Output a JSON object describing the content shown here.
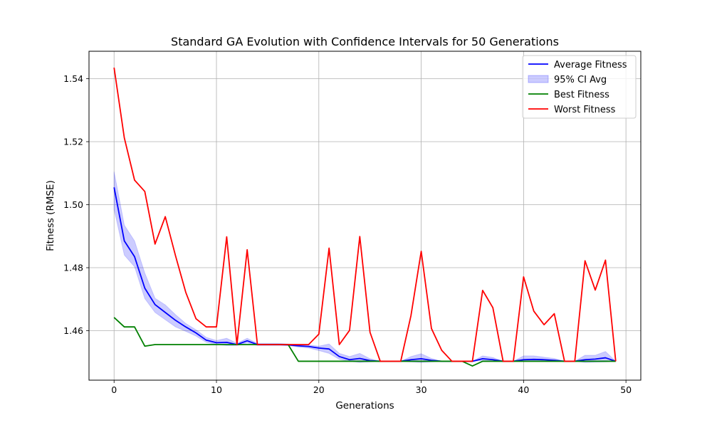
{
  "chart_data": {
    "type": "line",
    "title": "Standard GA Evolution with Confidence Intervals for 50 Generations",
    "xlabel": "Generations",
    "ylabel": "Fitness (RMSE)",
    "xlim": [
      -2.45,
      51.45
    ],
    "ylim": [
      1.4443,
      1.5487
    ],
    "xticks": [
      0,
      10,
      20,
      30,
      40,
      50
    ],
    "yticks": [
      1.46,
      1.48,
      1.5,
      1.52,
      1.54
    ],
    "ytick_labels": [
      "1.46",
      "1.48",
      "1.50",
      "1.52",
      "1.54"
    ],
    "grid": true,
    "legend_position": "top-right",
    "x": [
      0,
      1,
      2,
      3,
      4,
      5,
      6,
      7,
      8,
      9,
      10,
      11,
      12,
      13,
      14,
      15,
      16,
      17,
      18,
      19,
      20,
      21,
      22,
      23,
      24,
      25,
      26,
      27,
      28,
      29,
      30,
      31,
      32,
      33,
      34,
      35,
      36,
      37,
      38,
      39,
      40,
      41,
      42,
      43,
      44,
      45,
      46,
      47,
      48,
      49
    ],
    "series": [
      {
        "name": "Average Fitness",
        "color": "#0000ff",
        "values": [
          1.5055,
          1.4885,
          1.4835,
          1.4735,
          1.4683,
          1.4658,
          1.4633,
          1.4612,
          1.4593,
          1.457,
          1.4562,
          1.4563,
          1.4556,
          1.4568,
          1.4556,
          1.4556,
          1.4556,
          1.4555,
          1.4552,
          1.455,
          1.4545,
          1.4542,
          1.4518,
          1.4508,
          1.4512,
          1.4505,
          1.4503,
          1.4503,
          1.4503,
          1.4508,
          1.4511,
          1.4506,
          1.4503,
          1.4503,
          1.4503,
          1.4503,
          1.4511,
          1.4508,
          1.4503,
          1.4503,
          1.4508,
          1.4509,
          1.4508,
          1.4506,
          1.4503,
          1.4503,
          1.4508,
          1.451,
          1.4514,
          1.4503
        ]
      },
      {
        "name": "95% CI Avg",
        "color": "#0000ff",
        "opacity": 0.2,
        "lower": [
          1.4985,
          1.484,
          1.4803,
          1.4702,
          1.4658,
          1.4635,
          1.4612,
          1.4598,
          1.4583,
          1.4563,
          1.4556,
          1.4553,
          1.4553,
          1.4561,
          1.4553,
          1.4553,
          1.4553,
          1.4553,
          1.4548,
          1.4545,
          1.4537,
          1.4528,
          1.4509,
          1.4503,
          1.4499,
          1.4501,
          1.4503,
          1.4503,
          1.4503,
          1.4501,
          1.4499,
          1.4501,
          1.4503,
          1.4503,
          1.4503,
          1.4503,
          1.4505,
          1.4503,
          1.4503,
          1.4503,
          1.4503,
          1.4503,
          1.4503,
          1.4503,
          1.4503,
          1.4503,
          1.4499,
          1.45,
          1.4501,
          1.4503
        ],
        "upper": [
          1.5105,
          1.4935,
          1.4885,
          1.4783,
          1.4703,
          1.4682,
          1.4651,
          1.4623,
          1.4603,
          1.4579,
          1.4569,
          1.4576,
          1.456,
          1.4576,
          1.456,
          1.456,
          1.456,
          1.4558,
          1.4556,
          1.4555,
          1.4551,
          1.4558,
          1.4528,
          1.4518,
          1.4528,
          1.4511,
          1.4503,
          1.4503,
          1.4503,
          1.4518,
          1.4527,
          1.4512,
          1.4503,
          1.4503,
          1.4503,
          1.4503,
          1.452,
          1.4515,
          1.4503,
          1.4503,
          1.452,
          1.452,
          1.4516,
          1.4512,
          1.4503,
          1.4503,
          1.4522,
          1.4522,
          1.4534,
          1.4503
        ]
      },
      {
        "name": "Best Fitness",
        "color": "#008000",
        "values": [
          1.4642,
          1.4612,
          1.4612,
          1.4551,
          1.4556,
          1.4556,
          1.4556,
          1.4556,
          1.4556,
          1.4556,
          1.4556,
          1.4556,
          1.4556,
          1.4556,
          1.4556,
          1.4556,
          1.4556,
          1.4556,
          1.4503,
          1.4503,
          1.4503,
          1.4503,
          1.4503,
          1.4503,
          1.4503,
          1.4503,
          1.4503,
          1.4503,
          1.4503,
          1.4503,
          1.4503,
          1.4503,
          1.4503,
          1.4503,
          1.4503,
          1.4488,
          1.4503,
          1.4503,
          1.4503,
          1.4503,
          1.4503,
          1.4503,
          1.4503,
          1.4503,
          1.4503,
          1.4503,
          1.4503,
          1.4503,
          1.4503,
          1.4503
        ]
      },
      {
        "name": "Worst Fitness",
        "color": "#ff0000",
        "values": [
          1.5435,
          1.5212,
          1.5078,
          1.5042,
          1.4875,
          1.4962,
          1.4838,
          1.4722,
          1.4638,
          1.4612,
          1.4612,
          1.4898,
          1.4556,
          1.4857,
          1.4556,
          1.4556,
          1.4556,
          1.4556,
          1.4556,
          1.4556,
          1.4589,
          1.4862,
          1.4556,
          1.4601,
          1.4899,
          1.4595,
          1.4503,
          1.4503,
          1.4503,
          1.4648,
          1.4852,
          1.4607,
          1.4538,
          1.4503,
          1.4503,
          1.4503,
          1.4728,
          1.4673,
          1.4503,
          1.4503,
          1.4771,
          1.4662,
          1.4619,
          1.4654,
          1.4503,
          1.4503,
          1.4822,
          1.4729,
          1.4824,
          1.4503
        ]
      }
    ]
  }
}
